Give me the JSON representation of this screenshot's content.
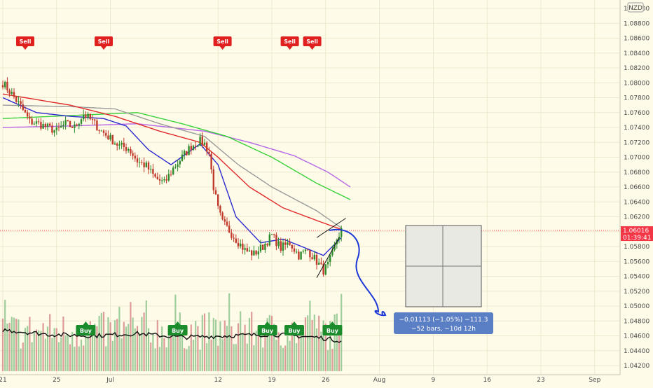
{
  "chart_data": {
    "type": "candlestick",
    "y_axis": {
      "range": [
        1.0416,
        1.0906
      ],
      "ticks": [
        "1.09000",
        "1.08800",
        "1.08600",
        "1.08400",
        "1.08200",
        "1.08000",
        "1.07800",
        "1.07600",
        "1.07400",
        "1.07200",
        "1.07000",
        "1.06800",
        "1.06600",
        "1.06400",
        "1.06200",
        "1.06000",
        "1.05800",
        "1.05600",
        "1.05400",
        "1.05200",
        "1.05000",
        "1.04800",
        "1.04600",
        "1.04400",
        "1.04200"
      ],
      "currency_badge": "NZD",
      "position": "right"
    },
    "x_axis": {
      "ticks": [
        {
          "label": "21",
          "index": 0
        },
        {
          "label": "25",
          "index": 24
        },
        {
          "label": "Jul",
          "index": 48
        },
        {
          "label": "12",
          "index": 96
        },
        {
          "label": "19",
          "index": 120
        },
        {
          "label": "26",
          "index": 144
        },
        {
          "label": "Aug",
          "index": 168
        },
        {
          "label": "9",
          "index": 192
        },
        {
          "label": "16",
          "index": 216
        },
        {
          "label": "23",
          "index": 240
        },
        {
          "label": "Sep",
          "index": 264
        }
      ]
    },
    "close_anchors": [
      [
        0,
        1.08
      ],
      [
        4,
        1.0785
      ],
      [
        8,
        1.0768
      ],
      [
        12,
        1.0748
      ],
      [
        16,
        1.0745
      ],
      [
        20,
        1.074
      ],
      [
        24,
        1.0735
      ],
      [
        28,
        1.0745
      ],
      [
        32,
        1.074
      ],
      [
        36,
        1.0758
      ],
      [
        40,
        1.0748
      ],
      [
        44,
        1.0735
      ],
      [
        48,
        1.0725
      ],
      [
        52,
        1.0715
      ],
      [
        56,
        1.0712
      ],
      [
        60,
        1.0695
      ],
      [
        64,
        1.0688
      ],
      [
        68,
        1.0672
      ],
      [
        72,
        1.0665
      ],
      [
        76,
        1.0685
      ],
      [
        80,
        1.07
      ],
      [
        84,
        1.0715
      ],
      [
        88,
        1.0722
      ],
      [
        90,
        1.0718
      ],
      [
        92,
        1.0705
      ],
      [
        94,
        1.066
      ],
      [
        96,
        1.063
      ],
      [
        98,
        1.0612
      ],
      [
        100,
        1.0605
      ],
      [
        104,
        1.059
      ],
      [
        108,
        1.0575
      ],
      [
        112,
        1.057
      ],
      [
        116,
        1.058
      ],
      [
        120,
        1.0595
      ],
      [
        124,
        1.0578
      ],
      [
        128,
        1.0585
      ],
      [
        132,
        1.0568
      ],
      [
        136,
        1.0575
      ],
      [
        140,
        1.056
      ],
      [
        143,
        1.0548
      ],
      [
        145,
        1.0555
      ],
      [
        147,
        1.057
      ],
      [
        149,
        1.059
      ],
      [
        151,
        1.0602
      ]
    ],
    "last_price": {
      "value": 1.06016,
      "label": "1.06016",
      "countdown": "01:39:41",
      "color": "#f23645"
    },
    "signals": [
      {
        "label": "Sell",
        "type": "sell",
        "index": 10
      },
      {
        "label": "Sell",
        "type": "sell",
        "index": 45
      },
      {
        "label": "Sell",
        "type": "sell",
        "index": 98
      },
      {
        "label": "Sell",
        "type": "sell",
        "index": 128
      },
      {
        "label": "Sell",
        "type": "sell",
        "index": 138
      },
      {
        "label": "Buy",
        "type": "buy",
        "index": 37
      },
      {
        "label": "Buy",
        "type": "buy",
        "index": 78
      },
      {
        "label": "Buy",
        "type": "buy",
        "index": 118
      },
      {
        "label": "Buy",
        "type": "buy",
        "index": 130
      },
      {
        "label": "Buy",
        "type": "buy",
        "index": 147
      }
    ],
    "moving_averages": [
      {
        "color": "#b567e6",
        "anchors": [
          [
            0,
            1.074
          ],
          [
            30,
            1.0742
          ],
          [
            60,
            1.0745
          ],
          [
            90,
            1.0735
          ],
          [
            110,
            1.072
          ],
          [
            130,
            1.0702
          ],
          [
            145,
            1.068
          ],
          [
            155,
            1.066
          ]
        ]
      },
      {
        "color": "#3ad13a",
        "anchors": [
          [
            0,
            1.0752
          ],
          [
            30,
            1.0756
          ],
          [
            60,
            1.076
          ],
          [
            80,
            1.0745
          ],
          [
            100,
            1.0728
          ],
          [
            120,
            1.07
          ],
          [
            140,
            1.0665
          ],
          [
            155,
            1.0643
          ]
        ]
      },
      {
        "color": "#9a9a9a",
        "anchors": [
          [
            0,
            1.077
          ],
          [
            30,
            1.0768
          ],
          [
            50,
            1.0765
          ],
          [
            70,
            1.0745
          ],
          [
            90,
            1.0728
          ],
          [
            105,
            1.069
          ],
          [
            120,
            1.066
          ],
          [
            140,
            1.0628
          ],
          [
            151,
            1.0605
          ]
        ]
      },
      {
        "color": "#e02a2a",
        "anchors": [
          [
            0,
            1.0785
          ],
          [
            30,
            1.077
          ],
          [
            50,
            1.0755
          ],
          [
            70,
            1.0735
          ],
          [
            88,
            1.072
          ],
          [
            96,
            1.07
          ],
          [
            110,
            1.066
          ],
          [
            125,
            1.0632
          ],
          [
            140,
            1.0615
          ],
          [
            151,
            1.0603
          ]
        ]
      },
      {
        "color": "#2b2bcf",
        "anchors": [
          [
            0,
            1.078
          ],
          [
            15,
            1.076
          ],
          [
            30,
            1.0755
          ],
          [
            45,
            1.0752
          ],
          [
            55,
            1.0742
          ],
          [
            65,
            1.071
          ],
          [
            75,
            1.069
          ],
          [
            88,
            1.0718
          ],
          [
            96,
            1.069
          ],
          [
            104,
            1.062
          ],
          [
            115,
            1.0585
          ],
          [
            125,
            1.059
          ],
          [
            135,
            1.0578
          ],
          [
            143,
            1.0568
          ],
          [
            151,
            1.0592
          ]
        ]
      }
    ],
    "volume_baseline": {
      "anchors": [
        [
          0,
          1.0468
        ],
        [
          20,
          1.0462
        ],
        [
          40,
          1.046
        ],
        [
          60,
          1.0463
        ],
        [
          80,
          1.0458
        ],
        [
          100,
          1.046
        ],
        [
          120,
          1.0462
        ],
        [
          140,
          1.0458
        ],
        [
          152,
          1.0453
        ]
      ]
    },
    "measurement": {
      "line1": "−0.01113 (−1.05%) −111.3",
      "line2": "−52 bars, −10d 12h"
    }
  }
}
